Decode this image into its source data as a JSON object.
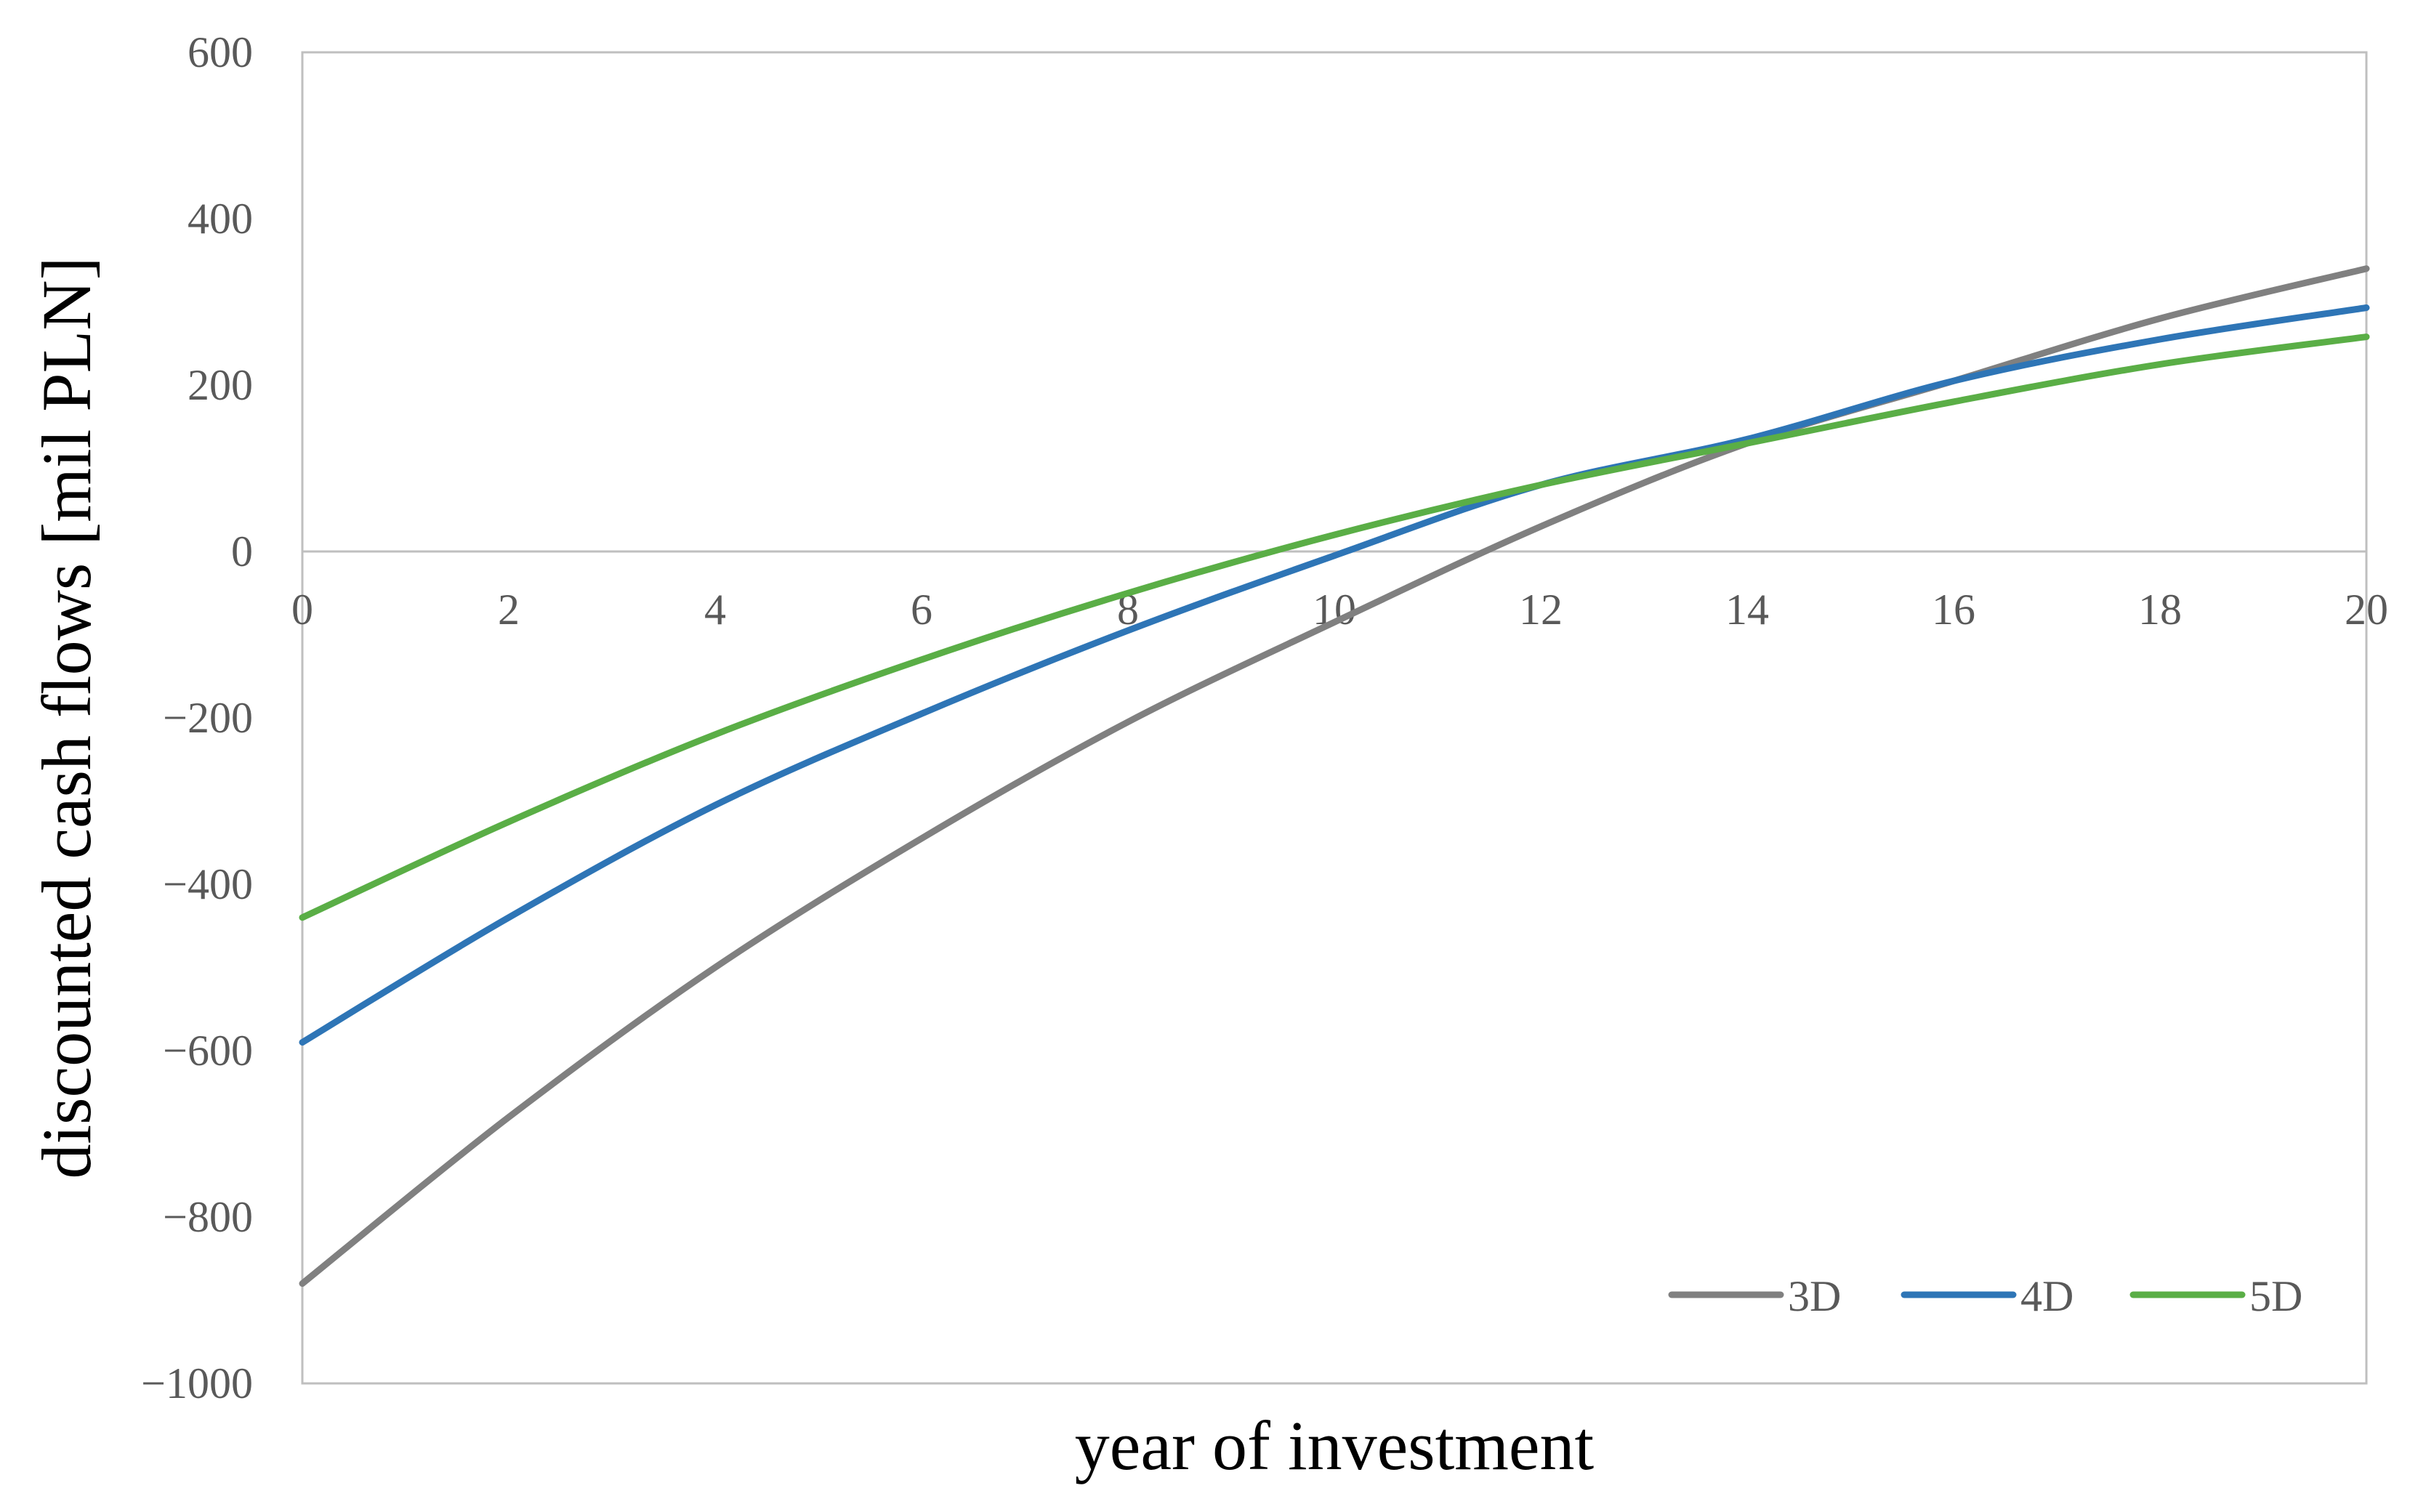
{
  "chart_data": {
    "type": "line",
    "title": "",
    "xlabel": "year of investment",
    "ylabel": "discounted cash flows [mil PLN]",
    "xlim": [
      0,
      20
    ],
    "ylim": [
      -1000,
      600
    ],
    "x_ticks": [
      0,
      2,
      4,
      6,
      8,
      10,
      12,
      14,
      16,
      18,
      20
    ],
    "y_ticks": [
      600,
      400,
      200,
      0,
      -200,
      -400,
      -600,
      -800,
      -1000
    ],
    "x_tick_labels": [
      "0",
      "2",
      "4",
      "6",
      "8",
      "10",
      "12",
      "14",
      "16",
      "18",
      "20"
    ],
    "y_tick_labels": [
      "600",
      "400",
      "200",
      "0",
      "−200",
      "−400",
      "−600",
      "−800",
      "−1000"
    ],
    "grid": false,
    "legend_position": "bottom-right",
    "x": [
      0,
      2,
      4,
      6,
      8,
      10,
      12,
      14,
      16,
      18,
      20
    ],
    "series": [
      {
        "name": "3D",
        "color": "#808080",
        "values": [
          -880,
          -680,
          -500,
          -345,
          -205,
          -85,
          30,
          130,
          205,
          280,
          340
        ]
      },
      {
        "name": "4D",
        "color": "#2E75B6",
        "values": [
          -590,
          -440,
          -305,
          -195,
          -95,
          -5,
          80,
          135,
          205,
          255,
          293
        ]
      },
      {
        "name": "5D",
        "color": "#5AAE46",
        "values": [
          -440,
          -325,
          -220,
          -130,
          -50,
          20,
          80,
          130,
          180,
          225,
          258
        ]
      }
    ]
  }
}
